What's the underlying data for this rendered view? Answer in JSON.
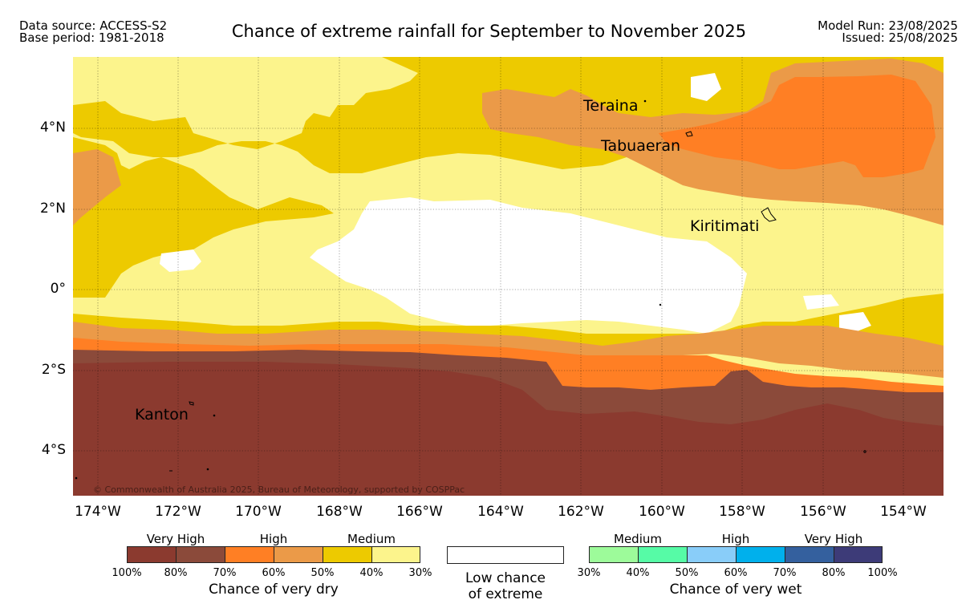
{
  "header": {
    "source_line1": "Data source: ACCESS-S2",
    "source_line2": "Base period: 1981-2018",
    "title": "Chance of extreme rainfall for September to November 2025",
    "run_line1": "Model Run: 23/08/2025",
    "run_line2": "Issued: 25/08/2025"
  },
  "map": {
    "longitude_labels": [
      "174°W",
      "172°W",
      "170°W",
      "168°W",
      "166°W",
      "164°W",
      "162°W",
      "160°W",
      "158°W",
      "156°W",
      "154°W"
    ],
    "latitude_labels": [
      "4°N",
      "2°N",
      "0°",
      "2°S",
      "4°S"
    ],
    "places": {
      "teraina": "Teraina",
      "tabuaeran": "Tabuaeran",
      "kiritimati": "Kiritimati",
      "kanton": "Kanton"
    },
    "copyright": "© Commonwealth of Australia 2025, Bureau of Meteorology, supported by COSPPac"
  },
  "legend": {
    "dry": {
      "headers": [
        "Very High",
        "High",
        "Medium"
      ],
      "colors": [
        "#8b3a2f",
        "#8b4a3a",
        "#ff7f24",
        "#eb9a48",
        "#edca00",
        "#fcf48c"
      ],
      "ticks": [
        "100%",
        "80%",
        "70%",
        "60%",
        "50%",
        "40%",
        "30%"
      ],
      "title": "Chance of very dry"
    },
    "neutral": {
      "line1": "Low chance",
      "line2": "of extreme",
      "color": "#ffffff"
    },
    "wet": {
      "headers": [
        "Medium",
        "High",
        "Very High"
      ],
      "colors": [
        "#9dfb9a",
        "#56fba6",
        "#89cdf9",
        "#00b0ec",
        "#34609e",
        "#3d3b78"
      ],
      "ticks": [
        "30%",
        "40%",
        "50%",
        "60%",
        "70%",
        "80%",
        "100%"
      ],
      "title": "Chance of very wet"
    }
  }
}
